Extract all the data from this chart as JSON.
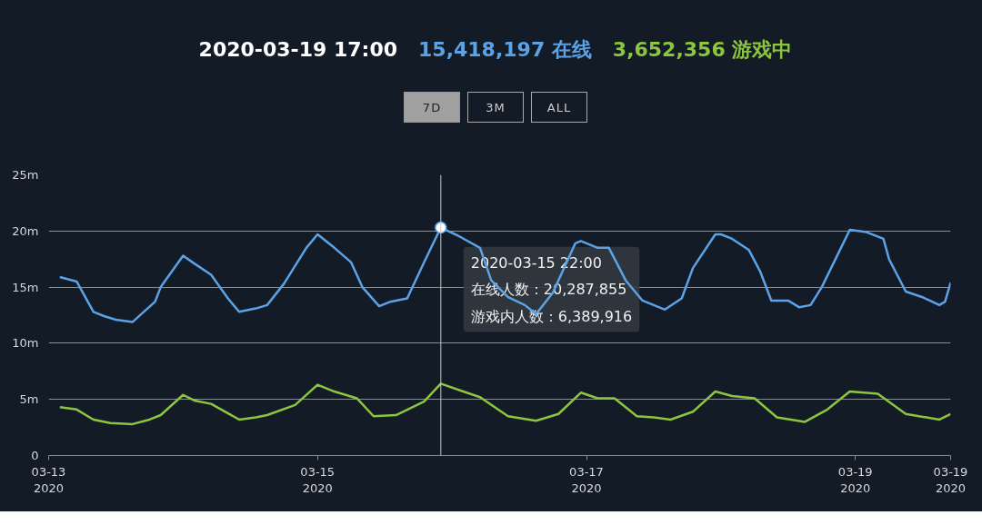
{
  "chart_data": {
    "type": "line",
    "title": "2020-03-19 17:00",
    "legend": "top",
    "grid": "y",
    "annotations": [
      {
        "text": "2020-03-15 22:00\n在线人数：20,287,855\n游戏内人数：6,389,916",
        "x": "2020-03-15T22:00",
        "y": 20.3
      },
      "7D",
      "3M",
      "ALL"
    ],
    "ref_lines": [
      {
        "axis": "x",
        "value": "2020-03-15T22:00",
        "label": null,
        "color": "#c8c8c8"
      }
    ],
    "xlim": [
      "2020-03-13T00:00",
      "2020-03-19T17:00"
    ],
    "xticks": [
      {
        "value": "2020-03-13T00:00",
        "label": "03-13\n2020"
      },
      {
        "value": "2020-03-15T00:00",
        "label": "03-15\n2020"
      },
      {
        "value": "2020-03-17T00:00",
        "label": "03-17\n2020"
      },
      {
        "value": "2020-03-19T00:00",
        "label": "03-19\n2020"
      },
      {
        "value": "2020-03-19T17:00",
        "label": "03-19\n2020"
      }
    ],
    "ylim": [
      0,
      25
    ],
    "yticks": [
      0,
      {
        "value": 5,
        "label": "5m"
      },
      {
        "value": 10,
        "label": "10m"
      },
      {
        "value": 15,
        "label": "15m"
      },
      {
        "value": 20,
        "label": "20m"
      },
      {
        "value": 25,
        "label": "25m"
      }
    ],
    "series": [
      {
        "name": "15,418,197 在线",
        "color": "#5ba3e6",
        "x": [
          "2020-03-13T02:00",
          "2020-03-13T05:00",
          "2020-03-13T08:00",
          "2020-03-13T10:00",
          "2020-03-13T12:00",
          "2020-03-13T15:00",
          "2020-03-13T19:00",
          "2020-03-13T20:00",
          "2020-03-14T00:00",
          "2020-03-14T02:00",
          "2020-03-14T05:00",
          "2020-03-14T08:00",
          "2020-03-14T10:00",
          "2020-03-14T13:00",
          "2020-03-14T15:00",
          "2020-03-14T18:00",
          "2020-03-14T22:00",
          "2020-03-15T00:00",
          "2020-03-15T03:00",
          "2020-03-15T06:00",
          "2020-03-15T08:00",
          "2020-03-15T11:00",
          "2020-03-15T13:00",
          "2020-03-15T16:00",
          "2020-03-15T19:00",
          "2020-03-15T22:00",
          "2020-03-16T01:00",
          "2020-03-16T05:00",
          "2020-03-16T07:00",
          "2020-03-16T10:00",
          "2020-03-16T13:00",
          "2020-03-16T15:00",
          "2020-03-16T18:00",
          "2020-03-16T22:00",
          "2020-03-16T23:00",
          "2020-03-17T02:00",
          "2020-03-17T04:00",
          "2020-03-17T07:00",
          "2020-03-17T10:00",
          "2020-03-17T14:00",
          "2020-03-17T17:00",
          "2020-03-17T19:00",
          "2020-03-17T23:00",
          "2020-03-18T00:00",
          "2020-03-18T02:00",
          "2020-03-18T05:00",
          "2020-03-18T07:00",
          "2020-03-18T09:00",
          "2020-03-18T12:00",
          "2020-03-18T14:00",
          "2020-03-18T16:00",
          "2020-03-18T18:00",
          "2020-03-18T23:00",
          "2020-03-19T02:00",
          "2020-03-19T05:00",
          "2020-03-19T06:00",
          "2020-03-19T09:00",
          "2020-03-19T12:00",
          "2020-03-19T15:00",
          "2020-03-19T16:00",
          "2020-03-19T17:00"
        ],
        "values": [
          15.9,
          15.5,
          12.8,
          12.4,
          12.1,
          11.9,
          13.7,
          15.0,
          17.8,
          17.1,
          16.1,
          14.0,
          12.8,
          13.1,
          13.4,
          15.3,
          18.5,
          19.7,
          18.5,
          17.2,
          15.0,
          13.3,
          13.7,
          14.0,
          17.2,
          20.3,
          19.6,
          18.5,
          15.6,
          14.1,
          13.4,
          12.6,
          14.5,
          18.9,
          19.1,
          18.5,
          18.5,
          15.6,
          13.8,
          13.0,
          14.0,
          16.7,
          19.7,
          19.7,
          19.3,
          18.3,
          16.4,
          13.8,
          13.8,
          13.2,
          13.4,
          15.0,
          20.1,
          19.9,
          19.3,
          17.5,
          14.6,
          14.1,
          13.4,
          13.7,
          15.4
        ]
      },
      {
        "name": "3,652,356 游戏中",
        "color": "#8cc63f",
        "x": [
          "2020-03-13T02:00",
          "2020-03-13T05:00",
          "2020-03-13T08:00",
          "2020-03-13T11:00",
          "2020-03-13T15:00",
          "2020-03-13T18:00",
          "2020-03-13T20:00",
          "2020-03-14T00:00",
          "2020-03-14T02:00",
          "2020-03-14T05:00",
          "2020-03-14T10:00",
          "2020-03-14T13:00",
          "2020-03-14T15:00",
          "2020-03-14T20:00",
          "2020-03-15T00:00",
          "2020-03-15T03:00",
          "2020-03-15T07:00",
          "2020-03-15T10:00",
          "2020-03-15T14:00",
          "2020-03-15T19:00",
          "2020-03-15T22:00",
          "2020-03-16T02:00",
          "2020-03-16T05:00",
          "2020-03-16T10:00",
          "2020-03-16T15:00",
          "2020-03-16T19:00",
          "2020-03-16T23:00",
          "2020-03-17T02:00",
          "2020-03-17T05:00",
          "2020-03-17T09:00",
          "2020-03-17T12:00",
          "2020-03-17T15:00",
          "2020-03-17T19:00",
          "2020-03-17T23:00",
          "2020-03-18T02:00",
          "2020-03-18T06:00",
          "2020-03-18T10:00",
          "2020-03-18T15:00",
          "2020-03-18T19:00",
          "2020-03-18T23:00",
          "2020-03-19T04:00",
          "2020-03-19T09:00",
          "2020-03-19T15:00",
          "2020-03-19T17:00"
        ],
        "values": [
          4.3,
          4.1,
          3.2,
          2.9,
          2.8,
          3.2,
          3.6,
          5.4,
          4.9,
          4.6,
          3.2,
          3.4,
          3.6,
          4.5,
          6.3,
          5.7,
          5.1,
          3.5,
          3.6,
          4.8,
          6.4,
          5.7,
          5.2,
          3.5,
          3.1,
          3.7,
          5.6,
          5.1,
          5.1,
          3.5,
          3.4,
          3.2,
          3.9,
          5.7,
          5.3,
          5.1,
          3.4,
          3.0,
          4.1,
          5.7,
          5.5,
          3.7,
          3.2,
          3.7
        ]
      }
    ]
  }
}
